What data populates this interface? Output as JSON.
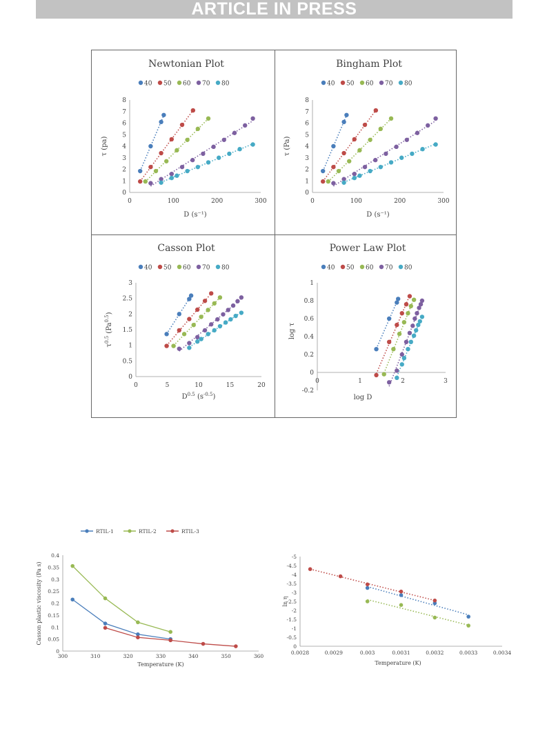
{
  "banner": {
    "text": "ARTICLE IN PRESS"
  },
  "colors": {
    "40": "#4a7ebb",
    "50": "#be4b48",
    "60": "#98b954",
    "70": "#7d60a0",
    "80": "#46aac5",
    "rtil1": "#4a7ebb",
    "rtil2": "#98b954",
    "rtil3": "#be4b48"
  },
  "chart_data": [
    {
      "id": "newtonian",
      "type": "scatter",
      "title": "Newtonian Plot",
      "xlabel": "D (s⁻¹)",
      "ylabel": "τ (pa)",
      "xlim": [
        0,
        300
      ],
      "ylim": [
        0,
        8
      ],
      "xticks": [
        "0",
        "100",
        "200",
        "300"
      ],
      "yticks": [
        "0",
        "1",
        "2",
        "3",
        "4",
        "5",
        "6",
        "7",
        "8"
      ],
      "legend": {
        "position": "top",
        "entries": [
          "40",
          "50",
          "60",
          "70",
          "80"
        ]
      },
      "trendline": "linear-dotted",
      "series": [
        {
          "name": "40",
          "x": [
            24,
            48,
            72,
            78
          ],
          "y": [
            1.85,
            4.0,
            6.1,
            6.7
          ]
        },
        {
          "name": "50",
          "x": [
            24,
            48,
            72,
            96,
            120,
            145
          ],
          "y": [
            0.95,
            2.2,
            3.4,
            4.6,
            5.85,
            7.1
          ]
        },
        {
          "name": "60",
          "x": [
            36,
            60,
            84,
            108,
            132,
            156,
            180
          ],
          "y": [
            0.95,
            1.85,
            2.7,
            3.65,
            4.55,
            5.5,
            6.4
          ]
        },
        {
          "name": "70",
          "x": [
            48,
            72,
            96,
            120,
            144,
            168,
            192,
            216,
            240,
            264,
            282
          ],
          "y": [
            0.8,
            1.15,
            1.6,
            2.2,
            2.8,
            3.35,
            3.95,
            4.55,
            5.15,
            5.8,
            6.4
          ]
        },
        {
          "name": "80",
          "x": [
            72,
            96,
            108,
            132,
            156,
            180,
            204,
            228,
            252,
            282
          ],
          "y": [
            0.85,
            1.25,
            1.45,
            1.85,
            2.2,
            2.6,
            3.0,
            3.35,
            3.75,
            4.15
          ]
        }
      ]
    },
    {
      "id": "bingham",
      "type": "scatter",
      "title": "Bingham Plot",
      "xlabel": "D (s⁻¹)",
      "ylabel": "τ (Pa)",
      "xlim": [
        0,
        300
      ],
      "ylim": [
        0,
        8
      ],
      "xticks": [
        "0",
        "100",
        "200",
        "300"
      ],
      "yticks": [
        "0",
        "1",
        "2",
        "3",
        "4",
        "5",
        "6",
        "7",
        "8"
      ],
      "legend": {
        "position": "top",
        "entries": [
          "40",
          "50",
          "60",
          "70",
          "80"
        ]
      },
      "trendline": "linear-dotted",
      "series": [
        {
          "name": "40",
          "x": [
            24,
            48,
            72,
            78
          ],
          "y": [
            1.85,
            4.0,
            6.1,
            6.7
          ]
        },
        {
          "name": "50",
          "x": [
            24,
            48,
            72,
            96,
            120,
            145
          ],
          "y": [
            0.95,
            2.2,
            3.4,
            4.6,
            5.85,
            7.1
          ]
        },
        {
          "name": "60",
          "x": [
            36,
            60,
            84,
            108,
            132,
            156,
            180
          ],
          "y": [
            0.95,
            1.85,
            2.7,
            3.65,
            4.55,
            5.5,
            6.4
          ]
        },
        {
          "name": "70",
          "x": [
            48,
            72,
            96,
            120,
            144,
            168,
            192,
            216,
            240,
            264,
            282
          ],
          "y": [
            0.8,
            1.15,
            1.6,
            2.2,
            2.8,
            3.35,
            3.95,
            4.55,
            5.15,
            5.8,
            6.4
          ]
        },
        {
          "name": "80",
          "x": [
            72,
            96,
            108,
            132,
            156,
            180,
            204,
            228,
            252,
            282
          ],
          "y": [
            0.85,
            1.25,
            1.45,
            1.85,
            2.2,
            2.6,
            3.0,
            3.35,
            3.75,
            4.15
          ]
        }
      ]
    },
    {
      "id": "casson",
      "type": "scatter",
      "title": "Casson Plot",
      "xlabel_main": "D",
      "xlabel_sup": "0.5",
      "xlabel_unit": " (s",
      "xlabel_unit_sup": "-0.5",
      "xlabel_end": ")",
      "ylabel_main": "τ",
      "ylabel_sup": "0.5",
      "ylabel_unit": " (Pa",
      "ylabel_unit_sup": "0.5",
      "ylabel_end": ")",
      "xlim": [
        0,
        20
      ],
      "ylim": [
        0,
        3
      ],
      "xticks": [
        "0",
        "5",
        "10",
        "15",
        "20"
      ],
      "yticks": [
        "0",
        "0.5",
        "1",
        "1.5",
        "2",
        "2.5",
        "3"
      ],
      "legend": {
        "position": "top",
        "entries": [
          "40",
          "50",
          "60",
          "70",
          "80"
        ]
      },
      "trendline": "linear-dotted",
      "series": [
        {
          "name": "40",
          "x": [
            4.9,
            6.9,
            8.5,
            8.8
          ],
          "y": [
            1.36,
            2.0,
            2.48,
            2.59
          ]
        },
        {
          "name": "50",
          "x": [
            4.9,
            6.9,
            8.5,
            9.8,
            11.0,
            12.0
          ],
          "y": [
            0.98,
            1.48,
            1.84,
            2.14,
            2.42,
            2.66
          ]
        },
        {
          "name": "60",
          "x": [
            6.0,
            7.7,
            9.2,
            10.4,
            11.5,
            12.5,
            13.4
          ],
          "y": [
            0.98,
            1.36,
            1.65,
            1.91,
            2.13,
            2.34,
            2.53
          ]
        },
        {
          "name": "70",
          "x": [
            6.9,
            8.5,
            9.8,
            11.0,
            12.0,
            13.0,
            13.9,
            14.7,
            15.5,
            16.2,
            16.8
          ],
          "y": [
            0.89,
            1.07,
            1.26,
            1.48,
            1.67,
            1.83,
            1.99,
            2.13,
            2.27,
            2.41,
            2.53
          ]
        },
        {
          "name": "80",
          "x": [
            8.5,
            9.8,
            10.4,
            11.5,
            12.5,
            13.4,
            14.3,
            15.1,
            15.9,
            16.8
          ],
          "y": [
            0.92,
            1.12,
            1.2,
            1.36,
            1.48,
            1.61,
            1.73,
            1.83,
            1.94,
            2.04
          ]
        }
      ]
    },
    {
      "id": "powerlaw",
      "type": "scatter",
      "title": "Power Law Plot",
      "xlabel": "log D",
      "ylabel": "log τ",
      "xlim": [
        0,
        3
      ],
      "ylim": [
        -0.2,
        1
      ],
      "xticks": [
        "0",
        "1",
        "2",
        "3"
      ],
      "yticks": [
        "-0.2",
        "0",
        "0.2",
        "0.4",
        "0.6",
        "0.8",
        "1"
      ],
      "legend": {
        "position": "top",
        "entries": [
          "40",
          "50",
          "60",
          "70",
          "80"
        ]
      },
      "trendline": "linear-dotted",
      "series": [
        {
          "name": "40",
          "x": [
            1.38,
            1.68,
            1.86,
            1.89
          ],
          "y": [
            0.26,
            0.6,
            0.78,
            0.82
          ]
        },
        {
          "name": "50",
          "x": [
            1.38,
            1.68,
            1.86,
            1.98,
            2.08,
            2.16
          ],
          "y": [
            -0.03,
            0.34,
            0.53,
            0.66,
            0.76,
            0.85
          ]
        },
        {
          "name": "60",
          "x": [
            1.56,
            1.78,
            1.92,
            2.03,
            2.12,
            2.19,
            2.26
          ],
          "y": [
            -0.02,
            0.26,
            0.43,
            0.56,
            0.66,
            0.74,
            0.81
          ]
        },
        {
          "name": "70",
          "x": [
            1.68,
            1.86,
            1.98,
            2.08,
            2.16,
            2.23,
            2.28,
            2.33,
            2.38,
            2.42,
            2.45
          ],
          "y": [
            -0.11,
            0.02,
            0.2,
            0.34,
            0.44,
            0.52,
            0.6,
            0.66,
            0.72,
            0.76,
            0.8
          ]
        },
        {
          "name": "80",
          "x": [
            1.86,
            1.98,
            2.03,
            2.12,
            2.19,
            2.26,
            2.31,
            2.36,
            2.4,
            2.45
          ],
          "y": [
            -0.06,
            0.09,
            0.16,
            0.26,
            0.34,
            0.41,
            0.47,
            0.53,
            0.57,
            0.62
          ]
        }
      ]
    },
    {
      "id": "casson-viscosity",
      "type": "line",
      "title": "",
      "xlabel": "Temperature (K)",
      "ylabel": "Casson plastic viscosity (Pa s)",
      "xlim": [
        300,
        360
      ],
      "ylim": [
        0,
        0.4
      ],
      "xticks": [
        "300",
        "310",
        "320",
        "330",
        "340",
        "350",
        "360"
      ],
      "yticks": [
        "0",
        "0.05",
        "0.1",
        "0.15",
        "0.2",
        "0.25",
        "0.3",
        "0.35",
        "0.4"
      ],
      "legend": {
        "position": "top",
        "entries": [
          "RTIL-1",
          "RTIL-2",
          "RTIL-3"
        ]
      },
      "series": [
        {
          "name": "RTIL-1",
          "x": [
            303,
            313,
            323,
            333
          ],
          "y": [
            0.215,
            0.115,
            0.07,
            0.05
          ]
        },
        {
          "name": "RTIL-2",
          "x": [
            303,
            313,
            323,
            333
          ],
          "y": [
            0.355,
            0.22,
            0.12,
            0.08
          ]
        },
        {
          "name": "RTIL-3",
          "x": [
            313,
            323,
            333,
            343,
            353
          ],
          "y": [
            0.097,
            0.057,
            0.045,
            0.03,
            0.02
          ]
        }
      ]
    },
    {
      "id": "ln-eta",
      "type": "scatter",
      "title": "",
      "xlabel": "Temperature (K)",
      "ylabel": "ln η",
      "xlim": [
        0.0028,
        0.0034
      ],
      "ylim": [
        0,
        -5
      ],
      "xticks": [
        "0.0028",
        "0.0029",
        "0.003",
        "0.0031",
        "0.0032",
        "0.0033",
        "0.0034"
      ],
      "yticks": [
        "0",
        "-0.5",
        "-1",
        "-1.5",
        "-2",
        "-2.5",
        "-3",
        "-3.5",
        "-4",
        "-4.5",
        "-5"
      ],
      "trendline": "linear-dotted",
      "series": [
        {
          "name": "RTIL-1",
          "x": [
            0.003,
            0.0031,
            0.0032,
            0.0033
          ],
          "y": [
            -3.25,
            -2.85,
            -2.4,
            -1.65
          ]
        },
        {
          "name": "RTIL-2",
          "x": [
            0.003,
            0.0031,
            0.0032,
            0.0033
          ],
          "y": [
            -2.5,
            -2.3,
            -1.6,
            -1.15
          ]
        },
        {
          "name": "RTIL-3",
          "x": [
            0.00283,
            0.00292,
            0.003,
            0.0031,
            0.0032
          ],
          "y": [
            -4.3,
            -3.9,
            -3.45,
            -3.05,
            -2.55
          ]
        }
      ]
    }
  ]
}
